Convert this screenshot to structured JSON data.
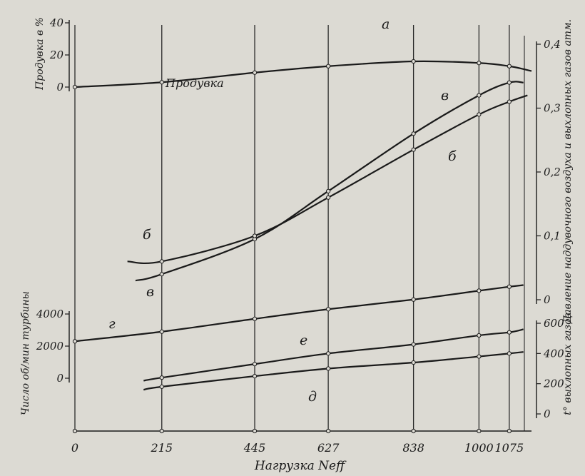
{
  "chart_data": {
    "type": "line",
    "xlabel": "Нагрузка Neff",
    "x_ticks": [
      0,
      215,
      445,
      627,
      838,
      1000,
      1075
    ],
    "xlim": [
      0,
      1130
    ],
    "axes": {
      "scavenging": {
        "ylabel": "Продувка в %",
        "unit": "%",
        "ticks": [
          0,
          20,
          40
        ],
        "ylim": [
          0,
          40
        ]
      },
      "pressure": {
        "ylabel": "Давление наддувочного воздуха и выхлопных газов атм.",
        "ticks": [
          0,
          0.1,
          0.2,
          0.3,
          0.4
        ],
        "tick_labels": [
          "0",
          "0,1",
          "0,2",
          "0,3",
          "0,4"
        ],
        "ylim": [
          0,
          0.4
        ]
      },
      "turbine_speed": {
        "ylabel": "Число об/мин турбины",
        "ticks": [
          0,
          2000,
          4000
        ],
        "ylim": [
          0,
          4000
        ]
      },
      "exhaust_temp": {
        "ylabel": "t° выхлопных газов",
        "ticks": [
          0,
          200,
          400,
          600
        ],
        "ylim": [
          0,
          600
        ]
      }
    },
    "series": [
      {
        "name": "а",
        "axis": "scavenging",
        "annotation": "Продувка",
        "x": [
          0,
          215,
          445,
          627,
          838,
          1000,
          1075,
          1130
        ],
        "y": [
          0,
          3,
          9,
          13,
          16,
          15,
          13,
          10
        ]
      },
      {
        "name": "в",
        "axis": "pressure",
        "x": [
          150,
          215,
          445,
          627,
          838,
          1000,
          1075,
          1110
        ],
        "y": [
          0.03,
          0.04,
          0.095,
          0.17,
          0.26,
          0.32,
          0.34,
          0.34
        ]
      },
      {
        "name": "б",
        "axis": "pressure",
        "x": [
          130,
          215,
          445,
          627,
          838,
          1000,
          1075,
          1120
        ],
        "y": [
          0.06,
          0.06,
          0.1,
          0.16,
          0.235,
          0.29,
          0.31,
          0.32
        ]
      },
      {
        "name": "г",
        "axis": "turbine_speed",
        "x": [
          0,
          215,
          445,
          627,
          838,
          1000,
          1075,
          1110
        ],
        "y": [
          2300,
          2900,
          3700,
          4300,
          4900,
          5450,
          5700,
          5800
        ]
      },
      {
        "name": "е",
        "axis": "exhaust_temp",
        "x": [
          170,
          215,
          445,
          627,
          838,
          1000,
          1075,
          1110
        ],
        "y": [
          220,
          240,
          330,
          400,
          460,
          520,
          540,
          560
        ]
      },
      {
        "name": "д",
        "axis": "exhaust_temp",
        "x": [
          170,
          215,
          445,
          627,
          838,
          1000,
          1075,
          1110
        ],
        "y": [
          160,
          180,
          250,
          300,
          340,
          380,
          400,
          410
        ]
      }
    ]
  }
}
